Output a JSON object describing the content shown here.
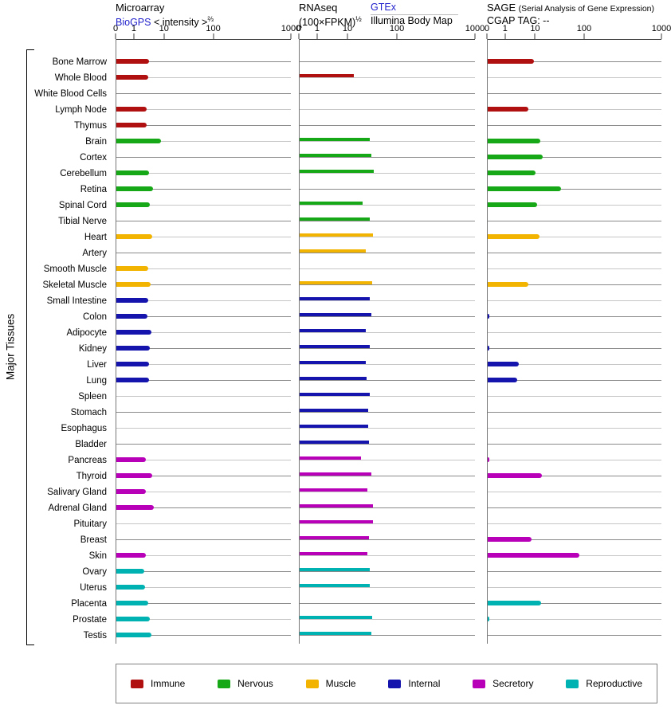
{
  "page": {
    "vertical_title": "Major Tissues"
  },
  "panels": {
    "microarray": {
      "title": "Microarray",
      "source_link": "BioGPS",
      "measure_prefix": "< intensity >",
      "measure_sup": "⅔"
    },
    "rnaseq": {
      "title": "RNAseq",
      "measure": "(100×FPKM)",
      "measure_sup": "½",
      "source_link": "GTEx",
      "source_sub": "Illumina Body Map"
    },
    "sage": {
      "title": "SAGE",
      "title_note": "(Serial Analysis of Gene Expression)",
      "tag_line": "CGAP TAG: --"
    }
  },
  "categories": {
    "immune": {
      "label": "Immune",
      "color": "#b01010"
    },
    "nervous": {
      "label": "Nervous",
      "color": "#17a817"
    },
    "muscle": {
      "label": "Muscle",
      "color": "#f2b400"
    },
    "internal": {
      "label": "Internal",
      "color": "#1515ad"
    },
    "secretory": {
      "label": "Secretory",
      "color": "#b800b8"
    },
    "reproductive": {
      "label": "Reproductive",
      "color": "#00b2b2"
    }
  },
  "legend_order": [
    "immune",
    "nervous",
    "muscle",
    "internal",
    "secretory",
    "reproductive"
  ],
  "chart_data": {
    "type": "bar",
    "orientation": "horizontal",
    "panels": [
      "microarray",
      "rnaseq",
      "sage"
    ],
    "axis": {
      "tick_labels": [
        "0",
        "1",
        "10",
        "100",
        "1000"
      ],
      "tick_values": [
        0,
        1,
        10,
        100,
        1000
      ],
      "tick_positions": [
        0,
        0.104,
        0.276,
        0.557,
        1.0
      ],
      "note": "nonlinear power-style axis; bar values interpolated between tick anchors"
    },
    "row_line_colors": {
      "dark": "#8a8a8a",
      "light": "#c6c6c6"
    },
    "rows": [
      {
        "tissue": "Bone Marrow",
        "category": "immune",
        "microarray": 5.3,
        "rnaseq": null,
        "sage": 9.4
      },
      {
        "tissue": "Whole Blood",
        "category": "immune",
        "microarray": 5.1,
        "rnaseq": 21,
        "sage": null
      },
      {
        "tissue": "White Blood Cells",
        "category": "immune",
        "microarray": null,
        "rnaseq": null,
        "sage": null
      },
      {
        "tissue": "Lymph Node",
        "category": "immune",
        "microarray": 4.6,
        "rnaseq": null,
        "sage": 7.9
      },
      {
        "tissue": "Thymus",
        "category": "immune",
        "microarray": 4.6,
        "rnaseq": null,
        "sage": null
      },
      {
        "tissue": "Brain",
        "category": "nervous",
        "microarray": 8.9,
        "rnaseq": 50,
        "sage": 19
      },
      {
        "tissue": "Cortex",
        "category": "nervous",
        "microarray": null,
        "rnaseq": 53,
        "sage": 23
      },
      {
        "tissue": "Cerebellum",
        "category": "nervous",
        "microarray": 5.4,
        "rnaseq": 57,
        "sage": 10
      },
      {
        "tissue": "Retina",
        "category": "nervous",
        "microarray": 6.5,
        "rnaseq": null,
        "sage": 57
      },
      {
        "tissue": "Spinal Cord",
        "category": "nervous",
        "microarray": 5.7,
        "rnaseq": 37,
        "sage": 12
      },
      {
        "tissue": "Tibial Nerve",
        "category": "nervous",
        "microarray": null,
        "rnaseq": 50,
        "sage": null
      },
      {
        "tissue": "Heart",
        "category": "muscle",
        "microarray": 6.4,
        "rnaseq": 55,
        "sage": 17
      },
      {
        "tissue": "Artery",
        "category": "muscle",
        "microarray": null,
        "rnaseq": 43,
        "sage": null
      },
      {
        "tissue": "Smooth Muscle",
        "category": "muscle",
        "microarray": 5.1,
        "rnaseq": null,
        "sage": null
      },
      {
        "tissue": "Skeletal Muscle",
        "category": "muscle",
        "microarray": 5.9,
        "rnaseq": 54,
        "sage": 7.8
      },
      {
        "tissue": "Small Intestine",
        "category": "internal",
        "microarray": 5.2,
        "rnaseq": 50,
        "sage": null
      },
      {
        "tissue": "Colon",
        "category": "internal",
        "microarray": 4.9,
        "rnaseq": 52,
        "sage": 0.05
      },
      {
        "tissue": "Adipocyte",
        "category": "internal",
        "microarray": 6.1,
        "rnaseq": 43,
        "sage": null
      },
      {
        "tissue": "Kidney",
        "category": "internal",
        "microarray": 5.6,
        "rnaseq": 49,
        "sage": 0.05
      },
      {
        "tissue": "Liver",
        "category": "internal",
        "microarray": 5.3,
        "rnaseq": 42,
        "sage": 5.0
      },
      {
        "tissue": "Lung",
        "category": "internal",
        "microarray": 5.3,
        "rnaseq": 44,
        "sage": 4.4
      },
      {
        "tissue": "Spleen",
        "category": "internal",
        "microarray": null,
        "rnaseq": 50,
        "sage": null
      },
      {
        "tissue": "Stomach",
        "category": "internal",
        "microarray": null,
        "rnaseq": 47,
        "sage": null
      },
      {
        "tissue": "Esophagus",
        "category": "internal",
        "microarray": null,
        "rnaseq": 47,
        "sage": null
      },
      {
        "tissue": "Bladder",
        "category": "internal",
        "microarray": null,
        "rnaseq": 48,
        "sage": null
      },
      {
        "tissue": "Pancreas",
        "category": "secretory",
        "microarray": 4.4,
        "rnaseq": 34,
        "sage": 0.05
      },
      {
        "tissue": "Thyroid",
        "category": "secretory",
        "microarray": 6.4,
        "rnaseq": 53,
        "sage": 22
      },
      {
        "tissue": "Salivary Gland",
        "category": "secretory",
        "microarray": 4.4,
        "rnaseq": 46,
        "sage": null
      },
      {
        "tissue": "Adrenal Gland",
        "category": "secretory",
        "microarray": 6.9,
        "rnaseq": 55,
        "sage": null
      },
      {
        "tissue": "Pituitary",
        "category": "secretory",
        "microarray": null,
        "rnaseq": 56,
        "sage": null
      },
      {
        "tissue": "Breast",
        "category": "secretory",
        "microarray": null,
        "rnaseq": 48,
        "sage": 8.8
      },
      {
        "tissue": "Skin",
        "category": "secretory",
        "microarray": 4.4,
        "rnaseq": 46,
        "sage": 90
      },
      {
        "tissue": "Ovary",
        "category": "reproductive",
        "microarray": 4.0,
        "rnaseq": 49,
        "sage": null
      },
      {
        "tissue": "Uterus",
        "category": "reproductive",
        "microarray": 4.2,
        "rnaseq": 50,
        "sage": null
      },
      {
        "tissue": "Placenta",
        "category": "reproductive",
        "microarray": 5.0,
        "rnaseq": null,
        "sage": 20
      },
      {
        "tissue": "Prostate",
        "category": "reproductive",
        "microarray": 5.7,
        "rnaseq": 54,
        "sage": 0.05
      },
      {
        "tissue": "Testis",
        "category": "reproductive",
        "microarray": 6.0,
        "rnaseq": 52,
        "sage": null
      }
    ]
  }
}
